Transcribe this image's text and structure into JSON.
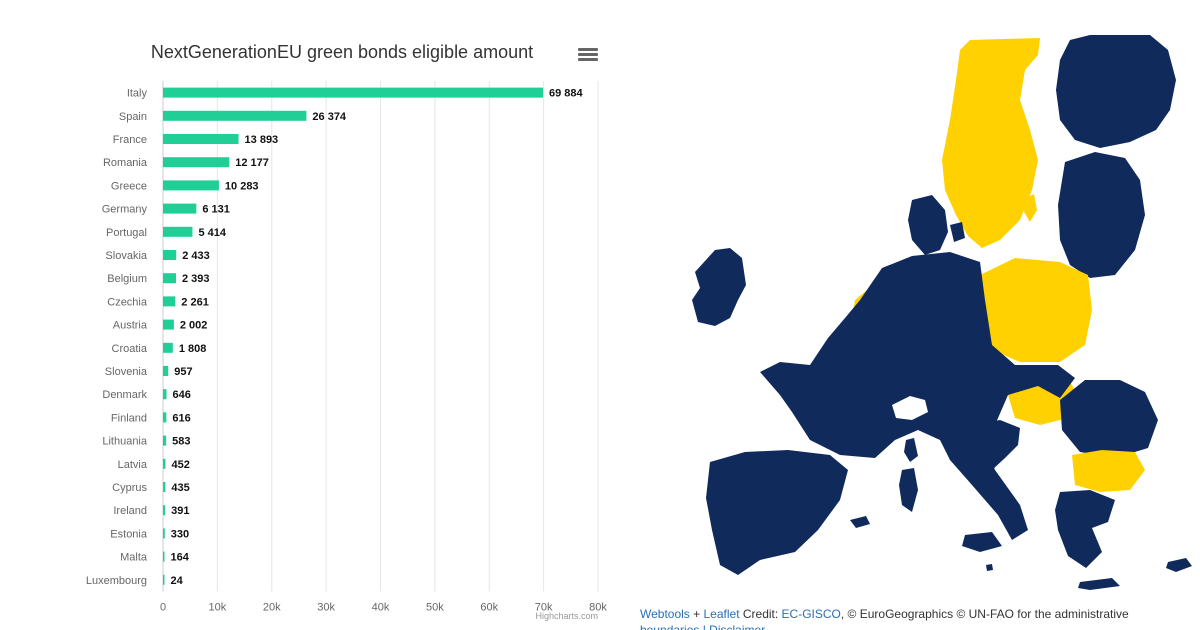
{
  "chart_data": {
    "type": "bar",
    "orientation": "horizontal",
    "title": "NextGenerationEU green bonds eligible amount",
    "credit": "Highcharts.com",
    "categories": [
      "Italy",
      "Spain",
      "France",
      "Romania",
      "Greece",
      "Germany",
      "Portugal",
      "Slovakia",
      "Belgium",
      "Czechia",
      "Austria",
      "Croatia",
      "Slovenia",
      "Denmark",
      "Finland",
      "Lithuania",
      "Latvia",
      "Cyprus",
      "Ireland",
      "Estonia",
      "Malta",
      "Luxembourg"
    ],
    "values": [
      69884,
      26374,
      13893,
      12177,
      10283,
      6131,
      5414,
      2433,
      2393,
      2261,
      2002,
      1808,
      957,
      646,
      616,
      583,
      452,
      435,
      391,
      330,
      164,
      24
    ],
    "value_labels": [
      "69 884",
      "26 374",
      "13 893",
      "12 177",
      "10 283",
      "6 131",
      "5 414",
      "2 433",
      "2 393",
      "2 261",
      "2 002",
      "1 808",
      "957",
      "646",
      "616",
      "583",
      "452",
      "435",
      "391",
      "330",
      "164",
      "24"
    ],
    "xlim": [
      0,
      80000
    ],
    "ticks": [
      0,
      10000,
      20000,
      30000,
      40000,
      50000,
      60000,
      70000,
      80000
    ],
    "tick_labels": [
      "0",
      "10k",
      "20k",
      "30k",
      "40k",
      "50k",
      "60k",
      "70k",
      "80k"
    ],
    "bar_color": "#1fcf96",
    "grid": true,
    "legend": false
  },
  "map": {
    "colors": {
      "navy": "#102a5c",
      "yellow": "#ffd100"
    },
    "credit": {
      "webtools": "Webtools",
      "plus": " + ",
      "leaflet": "Leaflet",
      "credit_label": " Credit: ",
      "gisco": "EC-GISCO",
      "rest": ", © EuroGeographics © UN-FAO for the administrative",
      "line2": "boundaries | Disclaimer"
    }
  }
}
